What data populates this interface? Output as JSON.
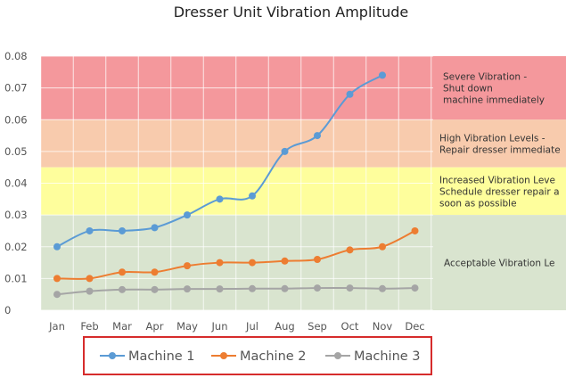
{
  "chart_data": {
    "type": "line",
    "title": "Dresser Unit Vibration Amplitude",
    "xlabel": "",
    "ylabel": "",
    "categories": [
      "Jan",
      "Feb",
      "Mar",
      "Apr",
      "May",
      "Jun",
      "Jul",
      "Aug",
      "Sep",
      "Oct",
      "Nov",
      "Dec"
    ],
    "ylim": [
      0,
      0.08
    ],
    "yticks": [
      "0",
      "0.01",
      "0.02",
      "0.03",
      "0.04",
      "0.05",
      "0.06",
      "0.07",
      "0.08"
    ],
    "grid": true,
    "legend_position": "bottom",
    "series": [
      {
        "name": "Machine 1",
        "color": "#5b9bd5",
        "values": [
          0.02,
          0.025,
          0.025,
          0.026,
          0.03,
          0.035,
          0.036,
          0.05,
          0.055,
          0.068,
          0.074,
          null
        ]
      },
      {
        "name": "Machine 2",
        "color": "#ed7d31",
        "values": [
          0.01,
          0.01,
          0.012,
          0.012,
          0.014,
          0.015,
          0.015,
          0.0155,
          0.016,
          0.019,
          0.02,
          0.025
        ]
      },
      {
        "name": "Machine 3",
        "color": "#a5a5a5",
        "values": [
          0.005,
          0.006,
          0.0065,
          0.0065,
          0.0067,
          0.0067,
          0.0068,
          0.0068,
          0.007,
          0.007,
          0.0068,
          0.007
        ]
      }
    ],
    "bands": [
      {
        "from": 0.06,
        "to": 0.08,
        "color": "#f4989c",
        "lines": [
          "Severe Vibration -",
          "Shut down",
          "machine immediately"
        ]
      },
      {
        "from": 0.045,
        "to": 0.06,
        "color": "#f8cbad",
        "lines": [
          "High Vibration Levels -",
          "Repair dresser immediate"
        ]
      },
      {
        "from": 0.03,
        "to": 0.045,
        "color": "#fefe9c",
        "lines": [
          "Increased Vibration Leve",
          "Schedule dresser repair a",
          "soon as possible"
        ]
      },
      {
        "from": 0,
        "to": 0.03,
        "color": "#d9e4cf",
        "lines": [
          "Acceptable Vibration Le"
        ]
      }
    ]
  }
}
